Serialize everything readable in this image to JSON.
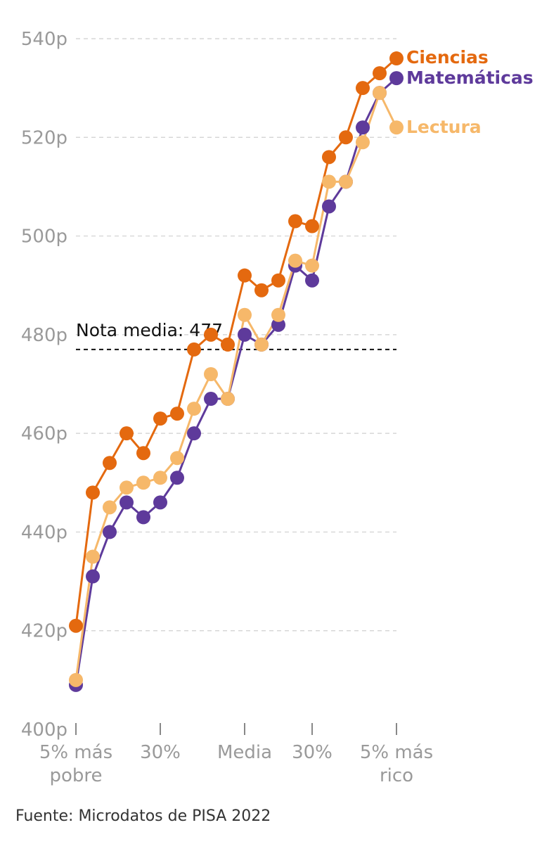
{
  "chart_data": {
    "type": "line",
    "ylim": [
      400,
      540
    ],
    "y_ticks": [
      400,
      420,
      440,
      460,
      480,
      500,
      520,
      540
    ],
    "y_tick_labels": [
      "400p",
      "420p",
      "440p",
      "460p",
      "480p",
      "500p",
      "520p",
      "540p"
    ],
    "x_count": 20,
    "x_ticks": [
      {
        "index": 0,
        "label": [
          "5% más",
          "pobre"
        ]
      },
      {
        "index": 5,
        "label": [
          "30%"
        ]
      },
      {
        "index": 10,
        "label": [
          "Media"
        ]
      },
      {
        "index": 14,
        "label": [
          "30%"
        ]
      },
      {
        "index": 19,
        "label": [
          "5% más",
          "rico"
        ]
      }
    ],
    "grid": true,
    "reference_line": {
      "value": 477,
      "label": "Nota media: 477"
    },
    "series": [
      {
        "name": "Ciencias",
        "color": "#e4690f",
        "values": [
          421,
          448,
          454,
          460,
          456,
          463,
          464,
          477,
          480,
          478,
          492,
          489,
          491,
          503,
          502,
          516,
          520,
          530,
          533,
          536
        ]
      },
      {
        "name": "Matemáticas",
        "color": "#5e3a9b",
        "values": [
          409,
          431,
          440,
          446,
          443,
          446,
          451,
          460,
          467,
          467,
          480,
          478,
          482,
          494,
          491,
          506,
          511,
          522,
          529,
          532
        ]
      },
      {
        "name": "Lectura",
        "color": "#f6b86a",
        "values": [
          410,
          435,
          445,
          449,
          450,
          451,
          455,
          465,
          472,
          467,
          484,
          478,
          484,
          495,
          494,
          511,
          511,
          519,
          529,
          522
        ]
      }
    ],
    "source": "Fuente: Microdatos de PISA 2022"
  }
}
